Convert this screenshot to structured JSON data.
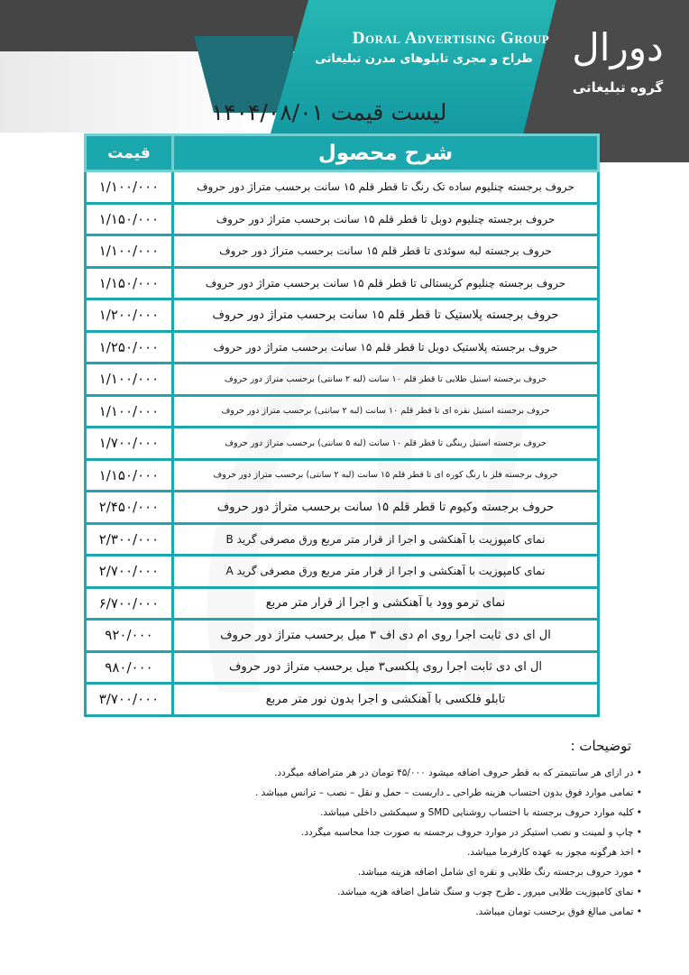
{
  "header": {
    "brand_en": "Doral Advertising Group",
    "brand_fa": "طراح و مجری تابلوهای مدرن تبلیغاتی",
    "logo_main": "دورال",
    "logo_sub": "گروه تبلیغاتی",
    "colors": {
      "teal": "#1aa8ae",
      "dark_gray": "#454545"
    }
  },
  "title": "لیست قیمت ۱۴۰۴/۰۸/۰۱",
  "table": {
    "headers": {
      "description": "شرح محصول",
      "price": "قیمت"
    },
    "rows": [
      {
        "description": "حروف برجسته چنلیوم ساده تک رنگ تا قطر قلم ۱۵ سانت برحسب متراژ دور حروف",
        "price": "۱/۱۰۰/۰۰۰"
      },
      {
        "description": "حروف برجسته چنلیوم دوبل  تا قطر قلم ۱۵ سانت برحسب متراژ دور حروف",
        "price": "۱/۱۵۰/۰۰۰"
      },
      {
        "description": "حروف برجسته لبه سوئدی  تا قطر قلم ۱۵ سانت برحسب متراژ دور حروف",
        "price": "۱/۱۰۰/۰۰۰"
      },
      {
        "description": "حروف برجسته چنلیوم کریستالی تا قطر قلم ۱۵ سانت برحسب متراژ دور حروف",
        "price": "۱/۱۵۰/۰۰۰"
      },
      {
        "description": "حروف برجسته پلاستیک تا قطر قلم ۱۵ سانت برحسب متراژ دور حروف",
        "price": "۱/۲۰۰/۰۰۰"
      },
      {
        "description": "حروف برجسته پلاستیک دوبل تا قطر قلم ۱۵ سانت برحسب متراژ دور حروف",
        "price": "۱/۲۵۰/۰۰۰"
      },
      {
        "description": "حروف برجسته استیل طلایی تا قطر قلم ۱۰ سانت (لبه ۲ سانتی) برحسب متراژ دور حروف",
        "price": "۱/۱۰۰/۰۰۰"
      },
      {
        "description": "حروف برجسته استیل نقره ای تا قطر قلم ۱۰ سانت (لبه ۲ سانتی) برحسب متراژ دور حروف",
        "price": "۱/۱۰۰/۰۰۰"
      },
      {
        "description": "حروف برجسته استیل رینگی تا قطر قلم ۱۰ سانت (لبه ۵ سانتی) برحسب متراژ دور حروف",
        "price": "۱/۷۰۰/۰۰۰"
      },
      {
        "description": "حروف برجسته فلز با رنگ کوره ای تا قطر قلم ۱۵ سانت (لبه ۲ سانتی) برحسب متراژ دور حروف",
        "price": "۱/۱۵۰/۰۰۰"
      },
      {
        "description": "حروف برجسته وکیوم تا قطر قلم ۱۵ سانت  برحسب متراژ دور حروف",
        "price": "۲/۴۵۰/۰۰۰"
      },
      {
        "description": "نمای کامپوزیت با آهنکشی و اجرا از قرار متر مربع ورق مصرفی گرید B",
        "price": "۲/۳۰۰/۰۰۰"
      },
      {
        "description": "نمای کامپوزیت با آهنکشی و اجرا از قرار متر مربع ورق مصرفی گرید A",
        "price": "۲/۷۰۰/۰۰۰"
      },
      {
        "description": "نمای ترمو وود با آهنکشی و اجرا از قرار متر مربع",
        "price": "۶/۷۰۰/۰۰۰"
      },
      {
        "description": "ال ای دی ثابت اجرا روی ام دی اف ۳ میل برحسب متراژ دور حروف",
        "price": "۹۲۰/۰۰۰"
      },
      {
        "description": "ال ای دی ثابت اجرا روی پلکسی۳ میل برحسب متراژ دور حروف",
        "price": "۹۸۰/۰۰۰"
      },
      {
        "description": "تابلو فلکسی با آهنکشی و اجرا بدون نور متر مربع",
        "price": "۳/۷۰۰/۰۰۰"
      }
    ]
  },
  "notes": {
    "title": "توضیحات :",
    "items": [
      "در ازای هر سانتیمتر که به قطر حروف اضافه میشود  ۴۵/۰۰۰ تومان در هر متراضافه میگردد.",
      "تمامی موارد فوق  بدون احتساب هزینه طراحی ـ داربست – حمل و نقل – نصب – ترانس میباشد .",
      "کلیه موارد حروف برجسته با احتساب روشنایی SMD و سیمکشی داخلی میباشد.",
      "چاپ و لمینت و نصب استیکر در موارد حروف برجسته به صورت جدا محاسبه میگردد.",
      "اخذ هرگونه مجوز به عهده کارفرما میباشد.",
      "مورد حروف برجسته رنگ طلایی و نقره ای شامل اضافه هزینه میباشد.",
      "نمای کامپوزیت طلایی میرور ـ طرح چوب و سنگ شامل اضافه هزیه میباشد.",
      "تمامی مبالغ فوق برحسب تومان میباشد."
    ]
  }
}
